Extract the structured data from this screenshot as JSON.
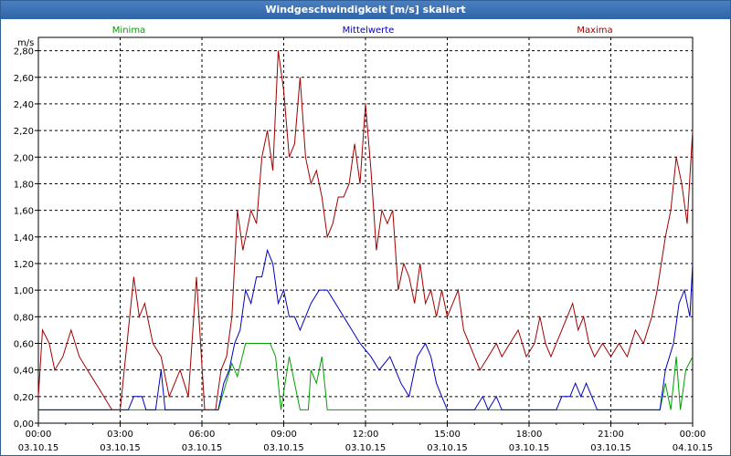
{
  "chart_data": {
    "type": "line",
    "title": "Windgeschwindigkeit [m/s] skaliert",
    "ylabel": "m/s",
    "xlabel": "",
    "ylim": [
      0,
      2.9
    ],
    "xlim": [
      0,
      24
    ],
    "grid": true,
    "legend_position": "top",
    "y_ticks": [
      "0,00",
      "0,20",
      "0,40",
      "0,60",
      "0,80",
      "1,00",
      "1,20",
      "1,40",
      "1,60",
      "1,80",
      "2,00",
      "2,20",
      "2,40",
      "2,60",
      "2,80"
    ],
    "x_ticks": [
      {
        "time": "00:00",
        "date": "03.10.15"
      },
      {
        "time": "03:00",
        "date": "03.10.15"
      },
      {
        "time": "06:00",
        "date": "03.10.15"
      },
      {
        "time": "09:00",
        "date": "03.10.15"
      },
      {
        "time": "12:00",
        "date": "03.10.15"
      },
      {
        "time": "15:00",
        "date": "03.10.15"
      },
      {
        "time": "18:00",
        "date": "03.10.15"
      },
      {
        "time": "21:00",
        "date": "03.10.15"
      },
      {
        "time": "00:00",
        "date": "04.10.15"
      }
    ],
    "series": [
      {
        "name": "Minima",
        "color": "#00a000",
        "points": [
          [
            0,
            0.1
          ],
          [
            1,
            0.1
          ],
          [
            2,
            0.1
          ],
          [
            3,
            0.1
          ],
          [
            4,
            0.1
          ],
          [
            5,
            0.1
          ],
          [
            6,
            0.1
          ],
          [
            6.6,
            0.1
          ],
          [
            7.1,
            0.45
          ],
          [
            7.3,
            0.35
          ],
          [
            7.6,
            0.6
          ],
          [
            8.5,
            0.6
          ],
          [
            8.7,
            0.5
          ],
          [
            8.9,
            0.1
          ],
          [
            9.2,
            0.5
          ],
          [
            9.4,
            0.3
          ],
          [
            9.6,
            0.1
          ],
          [
            9.9,
            0.1
          ],
          [
            10.0,
            0.4
          ],
          [
            10.2,
            0.3
          ],
          [
            10.4,
            0.5
          ],
          [
            10.6,
            0.1
          ],
          [
            11,
            0.1
          ],
          [
            12,
            0.1
          ],
          [
            13,
            0.1
          ],
          [
            14,
            0.1
          ],
          [
            15,
            0.1
          ],
          [
            16,
            0.1
          ],
          [
            17,
            0.1
          ],
          [
            18,
            0.1
          ],
          [
            19,
            0.1
          ],
          [
            20,
            0.1
          ],
          [
            21,
            0.1
          ],
          [
            22,
            0.1
          ],
          [
            22.8,
            0.1
          ],
          [
            23.0,
            0.3
          ],
          [
            23.2,
            0.1
          ],
          [
            23.4,
            0.5
          ],
          [
            23.55,
            0.1
          ],
          [
            23.75,
            0.4
          ],
          [
            24,
            0.5
          ]
        ]
      },
      {
        "name": "Mittelwerte",
        "color": "#0000c0",
        "points": [
          [
            0,
            0.1
          ],
          [
            1,
            0.1
          ],
          [
            2,
            0.1
          ],
          [
            3.3,
            0.1
          ],
          [
            3.5,
            0.2
          ],
          [
            3.8,
            0.2
          ],
          [
            3.95,
            0.1
          ],
          [
            4.3,
            0.1
          ],
          [
            4.5,
            0.4
          ],
          [
            4.65,
            0.1
          ],
          [
            5.3,
            0.1
          ],
          [
            5.5,
            0.1
          ],
          [
            6.6,
            0.1
          ],
          [
            6.8,
            0.3
          ],
          [
            7.0,
            0.4
          ],
          [
            7.2,
            0.6
          ],
          [
            7.4,
            0.7
          ],
          [
            7.6,
            1.0
          ],
          [
            7.8,
            0.9
          ],
          [
            8.0,
            1.1
          ],
          [
            8.2,
            1.1
          ],
          [
            8.4,
            1.3
          ],
          [
            8.6,
            1.2
          ],
          [
            8.8,
            0.9
          ],
          [
            9.0,
            1.0
          ],
          [
            9.2,
            0.8
          ],
          [
            9.4,
            0.8
          ],
          [
            9.6,
            0.7
          ],
          [
            9.8,
            0.8
          ],
          [
            10.0,
            0.9
          ],
          [
            10.3,
            1.0
          ],
          [
            10.6,
            1.0
          ],
          [
            10.9,
            0.9
          ],
          [
            11.2,
            0.8
          ],
          [
            11.5,
            0.7
          ],
          [
            11.8,
            0.6
          ],
          [
            12.2,
            0.5
          ],
          [
            12.5,
            0.4
          ],
          [
            12.9,
            0.5
          ],
          [
            13.3,
            0.3
          ],
          [
            13.6,
            0.2
          ],
          [
            13.9,
            0.5
          ],
          [
            14.2,
            0.6
          ],
          [
            14.4,
            0.5
          ],
          [
            14.6,
            0.3
          ],
          [
            14.8,
            0.2
          ],
          [
            15.0,
            0.1
          ],
          [
            16,
            0.1
          ],
          [
            16.3,
            0.2
          ],
          [
            16.5,
            0.1
          ],
          [
            16.8,
            0.2
          ],
          [
            17.0,
            0.1
          ],
          [
            18,
            0.1
          ],
          [
            19,
            0.1
          ],
          [
            19.2,
            0.2
          ],
          [
            19.5,
            0.2
          ],
          [
            19.7,
            0.3
          ],
          [
            19.9,
            0.2
          ],
          [
            20.1,
            0.3
          ],
          [
            20.3,
            0.2
          ],
          [
            20.5,
            0.1
          ],
          [
            21,
            0.1
          ],
          [
            22,
            0.1
          ],
          [
            22.8,
            0.1
          ],
          [
            23.0,
            0.4
          ],
          [
            23.3,
            0.6
          ],
          [
            23.5,
            0.9
          ],
          [
            23.7,
            1.0
          ],
          [
            23.9,
            0.8
          ],
          [
            24,
            1.2
          ]
        ]
      },
      {
        "name": "Maxima",
        "color": "#a00000",
        "points": [
          [
            0,
            0.2
          ],
          [
            0.15,
            0.7
          ],
          [
            0.4,
            0.6
          ],
          [
            0.6,
            0.4
          ],
          [
            0.9,
            0.5
          ],
          [
            1.2,
            0.7
          ],
          [
            1.5,
            0.5
          ],
          [
            1.8,
            0.4
          ],
          [
            2.1,
            0.3
          ],
          [
            2.4,
            0.2
          ],
          [
            2.7,
            0.1
          ],
          [
            3.0,
            0.1
          ],
          [
            3.2,
            0.5
          ],
          [
            3.5,
            1.1
          ],
          [
            3.7,
            0.8
          ],
          [
            3.9,
            0.9
          ],
          [
            4.2,
            0.6
          ],
          [
            4.5,
            0.5
          ],
          [
            4.8,
            0.2
          ],
          [
            5.2,
            0.4
          ],
          [
            5.5,
            0.2
          ],
          [
            5.8,
            1.1
          ],
          [
            6.1,
            0.1
          ],
          [
            6.5,
            0.1
          ],
          [
            6.7,
            0.4
          ],
          [
            6.9,
            0.5
          ],
          [
            7.1,
            0.8
          ],
          [
            7.3,
            1.6
          ],
          [
            7.5,
            1.3
          ],
          [
            7.8,
            1.6
          ],
          [
            8.0,
            1.5
          ],
          [
            8.2,
            2.0
          ],
          [
            8.4,
            2.2
          ],
          [
            8.6,
            1.9
          ],
          [
            8.8,
            2.8
          ],
          [
            9.0,
            2.5
          ],
          [
            9.2,
            2.0
          ],
          [
            9.4,
            2.1
          ],
          [
            9.6,
            2.6
          ],
          [
            9.8,
            2.0
          ],
          [
            10.0,
            1.8
          ],
          [
            10.2,
            1.9
          ],
          [
            10.4,
            1.7
          ],
          [
            10.6,
            1.4
          ],
          [
            10.8,
            1.5
          ],
          [
            11.0,
            1.7
          ],
          [
            11.2,
            1.7
          ],
          [
            11.4,
            1.8
          ],
          [
            11.6,
            2.1
          ],
          [
            11.8,
            1.8
          ],
          [
            12.0,
            2.4
          ],
          [
            12.2,
            1.9
          ],
          [
            12.4,
            1.3
          ],
          [
            12.6,
            1.6
          ],
          [
            12.8,
            1.5
          ],
          [
            13.0,
            1.6
          ],
          [
            13.2,
            1.0
          ],
          [
            13.4,
            1.2
          ],
          [
            13.6,
            1.1
          ],
          [
            13.8,
            0.9
          ],
          [
            14.0,
            1.2
          ],
          [
            14.2,
            0.9
          ],
          [
            14.4,
            1.0
          ],
          [
            14.6,
            0.8
          ],
          [
            14.8,
            1.0
          ],
          [
            15.0,
            0.8
          ],
          [
            15.2,
            0.9
          ],
          [
            15.4,
            1.0
          ],
          [
            15.6,
            0.7
          ],
          [
            15.8,
            0.6
          ],
          [
            16.0,
            0.5
          ],
          [
            16.2,
            0.4
          ],
          [
            16.5,
            0.5
          ],
          [
            16.8,
            0.6
          ],
          [
            17.0,
            0.5
          ],
          [
            17.3,
            0.6
          ],
          [
            17.6,
            0.7
          ],
          [
            17.9,
            0.5
          ],
          [
            18.2,
            0.6
          ],
          [
            18.4,
            0.8
          ],
          [
            18.6,
            0.6
          ],
          [
            18.8,
            0.5
          ],
          [
            19.0,
            0.6
          ],
          [
            19.2,
            0.7
          ],
          [
            19.4,
            0.8
          ],
          [
            19.6,
            0.9
          ],
          [
            19.8,
            0.7
          ],
          [
            20.0,
            0.8
          ],
          [
            20.2,
            0.6
          ],
          [
            20.4,
            0.5
          ],
          [
            20.7,
            0.6
          ],
          [
            21.0,
            0.5
          ],
          [
            21.3,
            0.6
          ],
          [
            21.6,
            0.5
          ],
          [
            21.9,
            0.7
          ],
          [
            22.2,
            0.6
          ],
          [
            22.5,
            0.8
          ],
          [
            22.7,
            1.0
          ],
          [
            23.0,
            1.4
          ],
          [
            23.2,
            1.6
          ],
          [
            23.4,
            2.0
          ],
          [
            23.6,
            1.8
          ],
          [
            23.8,
            1.5
          ],
          [
            24.0,
            2.2
          ]
        ]
      }
    ]
  }
}
